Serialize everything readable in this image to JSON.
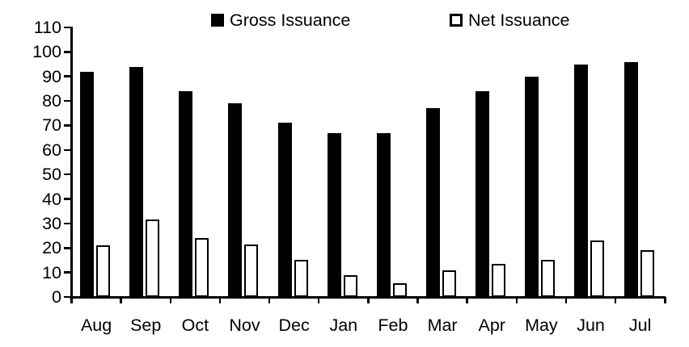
{
  "chart_data": {
    "type": "bar",
    "title": "",
    "xlabel": "",
    "ylabel": "",
    "categories": [
      "Aug",
      "Sep",
      "Oct",
      "Nov",
      "Dec",
      "Jan",
      "Feb",
      "Mar",
      "Apr",
      "May",
      "Jun",
      "Jul"
    ],
    "series": [
      {
        "name": "Gross Issuance",
        "style": "solid",
        "color": "#000000",
        "values": [
          92,
          94,
          84,
          79,
          71,
          67,
          67,
          77,
          84,
          90,
          95,
          96
        ]
      },
      {
        "name": "Net Issuance",
        "style": "outline",
        "color": "#ffffff",
        "border_color": "#000000",
        "values": [
          21,
          31.5,
          24,
          21.5,
          15,
          9,
          5.5,
          11,
          13.5,
          15,
          23,
          19
        ]
      }
    ],
    "ylim": [
      0,
      110
    ],
    "ytick_step": 10,
    "grid": false,
    "legend_position": "top"
  }
}
